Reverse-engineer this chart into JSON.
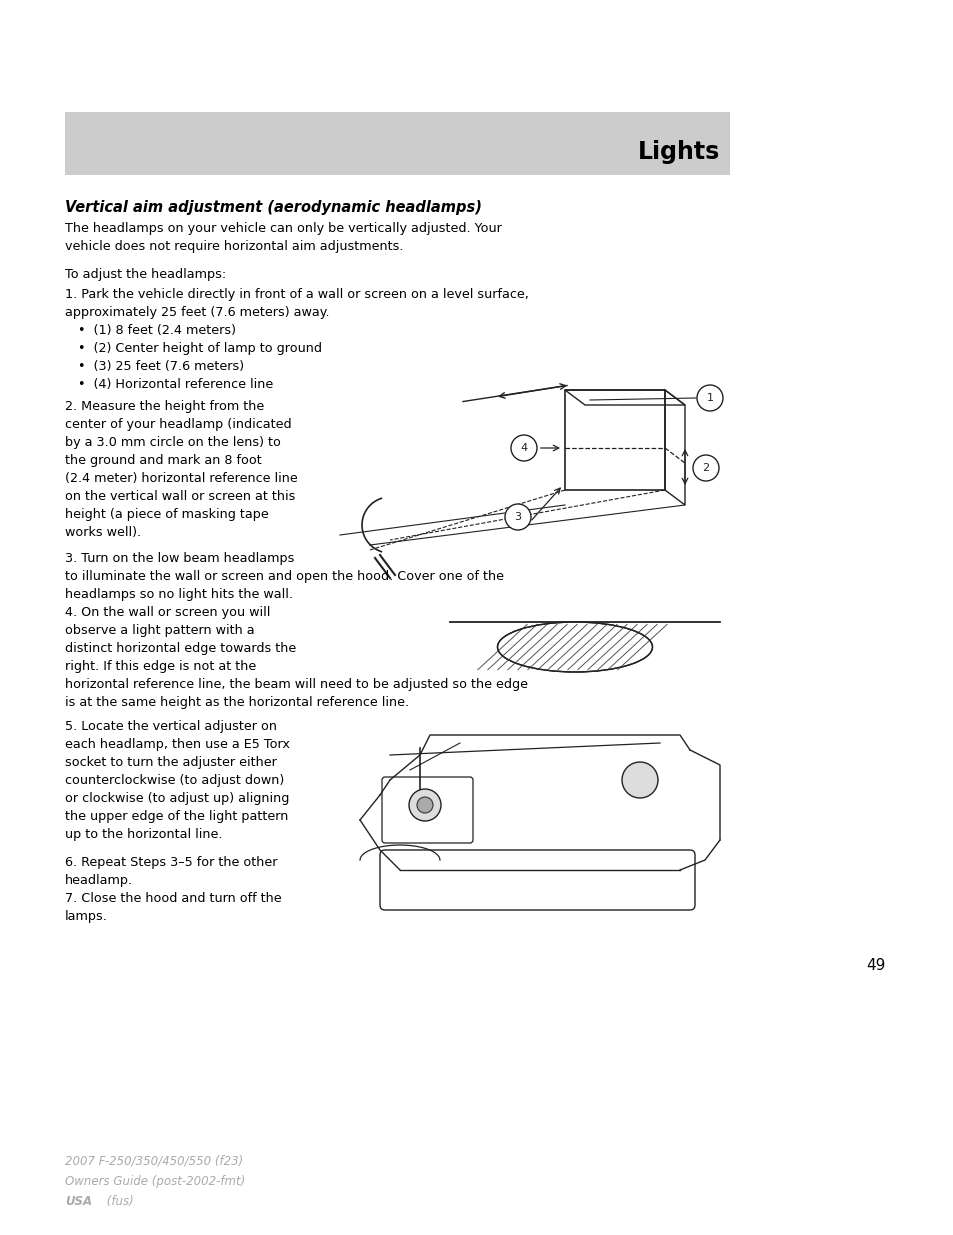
{
  "bg_color": "#ffffff",
  "header_bg": "#cccccc",
  "header_text": "Lights",
  "body_text_color": "#000000",
  "footer_text_color": "#aaaaaa",
  "page_number": "49",
  "footer_line1": "2007 F-250/350/450/550 (f23)",
  "footer_line2": "Owners Guide (post-2002-fmt)",
  "footer_line3_bold": "USA",
  "footer_line3_normal": " (fus)",
  "section_title": "Vertical aim adjustment (aerodynamic headlamps)",
  "para1": "The headlamps on your vehicle can only be vertically adjusted. Your\nvehicle does not require horizontal aim adjustments.",
  "para2": "To adjust the headlamps:",
  "para3": "1. Park the vehicle directly in front of a wall or screen on a level surface,\napproximately 25 feet (7.6 meters) away.",
  "bullet1": "•  (1) 8 feet (2.4 meters)",
  "bullet2": "•  (2) Center height of lamp to ground",
  "bullet3": "•  (3) 25 feet (7.6 meters)",
  "bullet4": "•  (4) Horizontal reference line",
  "para4": "2. Measure the height from the\ncenter of your headlamp (indicated\nby a 3.0 mm circle on the lens) to\nthe ground and mark an 8 foot\n(2.4 meter) horizontal reference line\non the vertical wall or screen at this\nheight (a piece of masking tape\nworks well).",
  "para5": "3. Turn on the low beam headlamps\nto illuminate the wall or screen and open the hood. Cover one of the\nheadlamps so no light hits the wall.",
  "para6": "4. On the wall or screen you will\nobserve a light pattern with a\ndistinct horizontal edge towards the\nright. If this edge is not at the\nhorizontal reference line, the beam will need to be adjusted so the edge\nis at the same height as the horizontal reference line.",
  "para7": "5. Locate the vertical adjuster on\neach headlamp, then use a E5 Torx\nsocket to turn the adjuster either\ncounterclockwise (to adjust down)\nor clockwise (to adjust up) aligning\nthe upper edge of the light pattern\nup to the horizontal line.",
  "para8": "6. Repeat Steps 3–5 for the other\nheadlamp.",
  "para9": "7. Close the hood and turn off the\nlamps."
}
